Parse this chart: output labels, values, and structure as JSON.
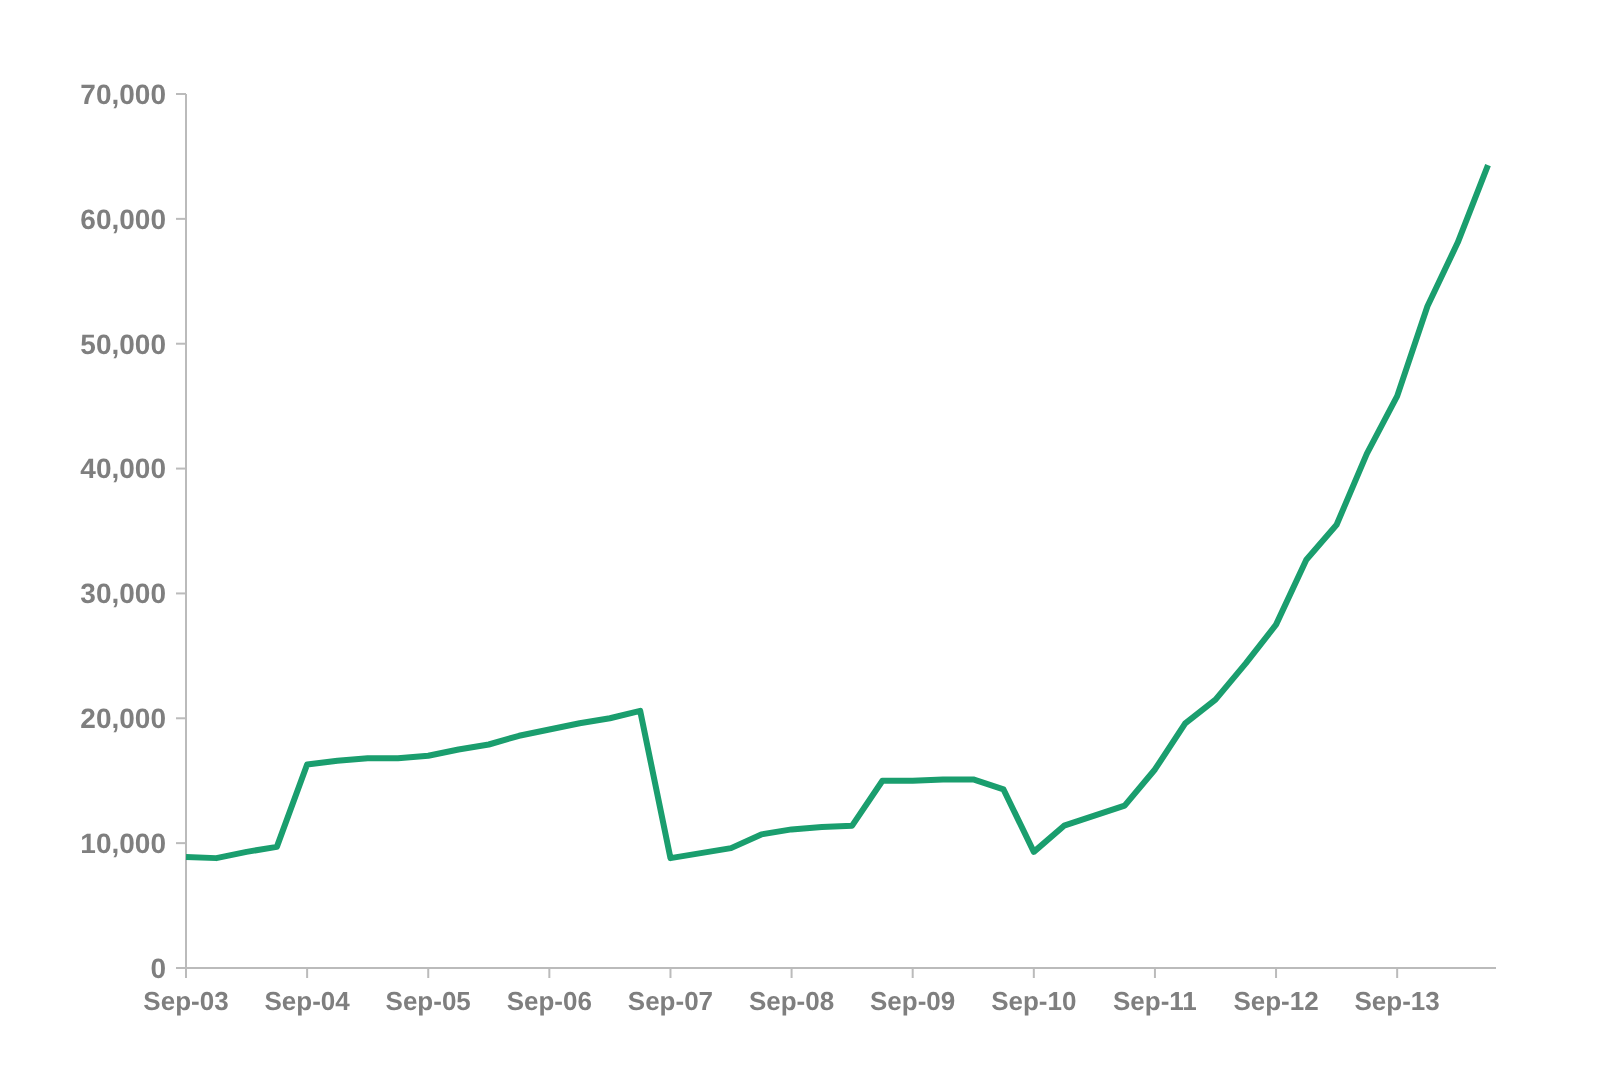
{
  "chart_data": {
    "type": "line",
    "categories": [
      "Sep-03",
      null,
      null,
      null,
      "Sep-04",
      null,
      null,
      null,
      "Sep-05",
      null,
      null,
      null,
      "Sep-06",
      null,
      null,
      null,
      "Sep-07",
      null,
      null,
      null,
      "Sep-08",
      null,
      null,
      null,
      "Sep-09",
      null,
      null,
      null,
      "Sep-10",
      null,
      null,
      null,
      "Sep-11",
      null,
      null,
      null,
      "Sep-12",
      null,
      null,
      null,
      "Sep-13",
      null,
      null,
      null
    ],
    "series": [
      {
        "color": "#1a9e6e",
        "values": [
          8900,
          8800,
          9300,
          9700,
          16300,
          16600,
          16800,
          16800,
          17000,
          17500,
          17900,
          18600,
          19100,
          19600,
          20000,
          20600,
          8800,
          9200,
          9600,
          10700,
          11100,
          11300,
          11400,
          15000,
          15000,
          15100,
          15100,
          14300,
          9300,
          11400,
          12200,
          13000,
          15900,
          19600,
          21500,
          24400,
          27500,
          32700,
          35500,
          41200,
          45800,
          53000,
          58100,
          64300
        ]
      }
    ],
    "ylim": [
      0,
      70000
    ],
    "yticks": [
      {
        "value": 0,
        "label": "0"
      },
      {
        "value": 10000,
        "label": "10,000"
      },
      {
        "value": 20000,
        "label": "20,000"
      },
      {
        "value": 30000,
        "label": "30,000"
      },
      {
        "value": 40000,
        "label": "40,000"
      },
      {
        "value": 50000,
        "label": "50,000"
      },
      {
        "value": 60000,
        "label": "60,000"
      },
      {
        "value": 70000,
        "label": "70,000"
      }
    ],
    "grid": false,
    "marker": "none",
    "line_style": "solid"
  }
}
